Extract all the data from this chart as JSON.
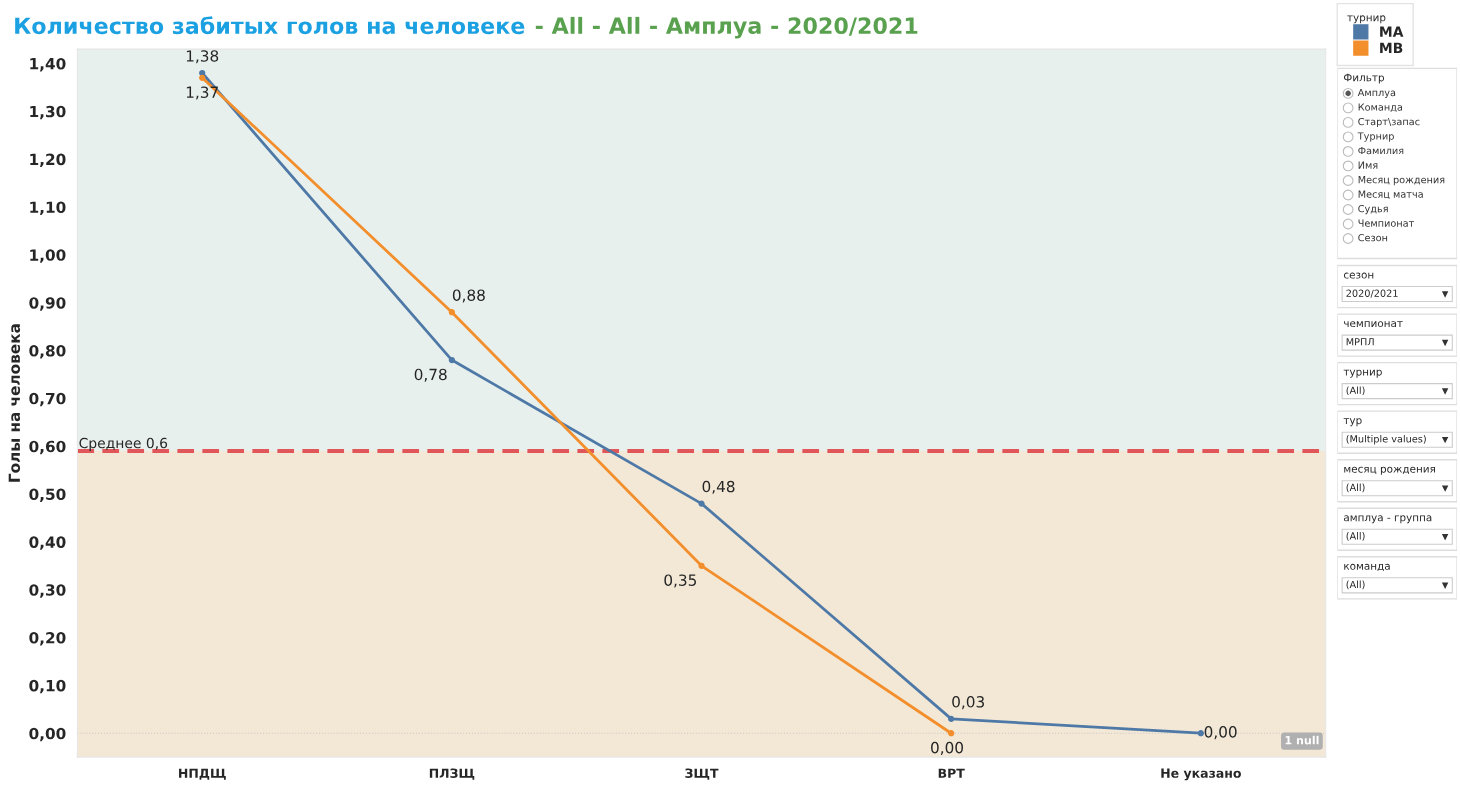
{
  "chart_data": [
    {
      "type": "line",
      "title": "Количество забитых голов на человеке",
      "subtitle": " - All - All - Амплуа - 2020/2021",
      "ylabel": "Голы на человека",
      "legend_title": "турнир",
      "legend": "top right",
      "marker": "circle",
      "line_style": "solid",
      "grid": false,
      "categories": [
        "НПДЩ",
        "ПЛЗЩ",
        "ЗЩТ",
        "ВРТ",
        "Не указано"
      ],
      "series": [
        {
          "name": "MA",
          "color": "#4e79a7",
          "values": [
            1.38,
            0.78,
            0.48,
            0.03,
            0.0
          ],
          "value_labels": [
            "1,38",
            "0,78",
            "0,48",
            "0,03",
            "0,00"
          ]
        },
        {
          "name": "MB",
          "color": "#f28e2b",
          "values": [
            1.37,
            0.88,
            0.35,
            0.0,
            null
          ],
          "value_labels": [
            "1,37",
            "0,88",
            "0,35",
            "0,00",
            null
          ]
        }
      ],
      "ylim": [
        -0.05,
        1.43
      ],
      "yticks": [
        {
          "value": 0,
          "label": "0,00"
        },
        {
          "value": 0.1,
          "label": "0,10"
        },
        {
          "value": 0.2,
          "label": "0,20"
        },
        {
          "value": 0.3,
          "label": "0,30"
        },
        {
          "value": 0.4,
          "label": "0,40"
        },
        {
          "value": 0.5,
          "label": "0,50"
        },
        {
          "value": 0.6,
          "label": "0,60"
        },
        {
          "value": 0.7,
          "label": "0,70"
        },
        {
          "value": 0.8,
          "label": "0,80"
        },
        {
          "value": 0.9,
          "label": "0,90"
        },
        {
          "value": 1.0,
          "label": "1,00"
        },
        {
          "value": 1.1,
          "label": "1,10"
        },
        {
          "value": 1.2,
          "label": "1,20"
        },
        {
          "value": 1.3,
          "label": "1,30"
        },
        {
          "value": 1.4,
          "label": "1,40"
        }
      ],
      "ref_lines": [
        {
          "axis": "y",
          "value": 0.59,
          "label": "Среднее 0,6",
          "color": "#e15759",
          "line_style": "dashed"
        },
        {
          "axis": "y",
          "value": 0,
          "color": "#c8c8c8",
          "line_style": "dotted"
        }
      ],
      "bands": [
        {
          "axis": "y",
          "from": 0.59,
          "to": 1.43,
          "color": "#e8f0ee"
        },
        {
          "axis": "y",
          "from": -0.05,
          "to": 0.59,
          "color": "#f3e8d6"
        }
      ],
      "annotations": [
        "1 null"
      ]
    },
    {
      "type": "other",
      "annotations": [
        "Фильтр",
        "Амплуа",
        "Команда",
        "Старт\\запас",
        "Турнир",
        "Фамилия",
        "Имя",
        "Месяц рождения",
        "Месяц матча",
        "Судья",
        "Чемпионат",
        "Сезон",
        "сезон",
        "2020/2021",
        "чемпионат",
        "МРПЛ",
        "турнир",
        "(All)",
        "тур",
        "(Multiple values)",
        "месяц рождения",
        "(All)",
        "амплуа - группа",
        "(All)",
        "команда",
        "(All)"
      ]
    }
  ]
}
